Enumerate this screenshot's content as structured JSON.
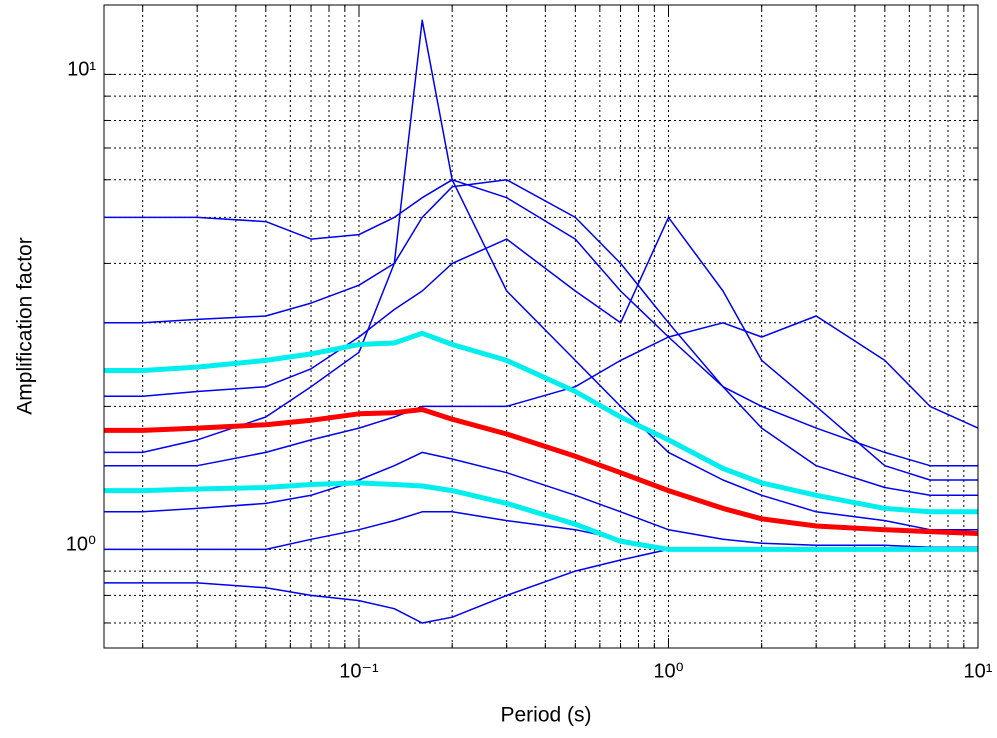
{
  "chart_data": {
    "type": "line",
    "xlabel": "Period (s)",
    "ylabel": "Amplification factor",
    "xlog": true,
    "ylog": true,
    "grid": true,
    "xlim": [
      0.015,
      10
    ],
    "ylim": [
      0.62,
      14
    ],
    "xticks": [
      {
        "value": 0.1,
        "label": "10⁻¹"
      },
      {
        "value": 1,
        "label": "10⁰"
      },
      {
        "value": 10,
        "label": "10¹"
      }
    ],
    "yticks": [
      {
        "value": 1,
        "label": "10⁰"
      },
      {
        "value": 10,
        "label": "10¹"
      }
    ],
    "x_minor_ticks": [
      0.02,
      0.03,
      0.04,
      0.05,
      0.06,
      0.07,
      0.08,
      0.09,
      0.2,
      0.3,
      0.4,
      0.5,
      0.6,
      0.7,
      0.8,
      0.9,
      2,
      3,
      4,
      5,
      6,
      7,
      8,
      9
    ],
    "y_minor_ticks": [
      0.7,
      0.8,
      0.9,
      2,
      3,
      4,
      5,
      6,
      7,
      8,
      9
    ],
    "x": [
      0.015,
      0.02,
      0.03,
      0.05,
      0.07,
      0.1,
      0.13,
      0.16,
      0.2,
      0.3,
      0.5,
      0.7,
      1,
      1.5,
      2,
      3,
      5,
      7,
      10
    ],
    "series": [
      {
        "color": "#0000ee",
        "line_width": 1.5,
        "values": [
          1.6,
          1.6,
          1.7,
          1.9,
          2.2,
          2.6,
          4,
          13,
          6,
          3.5,
          2.5,
          2,
          1.6,
          1.4,
          1.3,
          1.2,
          1.15,
          1.1,
          1.1
        ]
      },
      {
        "color": "#0000ee",
        "line_width": 1.5,
        "values": [
          5,
          5,
          5,
          4.9,
          4.5,
          4.6,
          5,
          5.5,
          6,
          5.5,
          4.5,
          3.5,
          2.8,
          2.2,
          2,
          1.8,
          1.6,
          1.5,
          1.5
        ]
      },
      {
        "color": "#0000ee",
        "line_width": 1.5,
        "values": [
          1.5,
          1.5,
          1.5,
          1.6,
          1.7,
          1.8,
          1.9,
          2,
          2,
          2,
          2.2,
          2.5,
          2.8,
          3,
          2.8,
          3.1,
          2.5,
          2,
          1.8
        ]
      },
      {
        "color": "#0000ee",
        "line_width": 1.5,
        "values": [
          0.85,
          0.85,
          0.85,
          0.83,
          0.8,
          0.78,
          0.75,
          0.7,
          0.72,
          0.8,
          0.9,
          0.95,
          1,
          1,
          1,
          1,
          1,
          1,
          1
        ]
      },
      {
        "color": "#0000ee",
        "line_width": 1.5,
        "values": [
          1.2,
          1.2,
          1.22,
          1.25,
          1.3,
          1.4,
          1.5,
          1.6,
          1.55,
          1.45,
          1.3,
          1.2,
          1.1,
          1.05,
          1.03,
          1.02,
          1.02,
          1.01,
          1.01
        ]
      },
      {
        "color": "#0000ee",
        "line_width": 1.5,
        "values": [
          2.1,
          2.1,
          2.15,
          2.2,
          2.4,
          2.8,
          3.2,
          3.5,
          4,
          4.5,
          3.5,
          3,
          5,
          3.5,
          2.5,
          2,
          1.5,
          1.4,
          1.4
        ]
      },
      {
        "color": "#0000ee",
        "line_width": 1.5,
        "values": [
          3,
          3,
          3.05,
          3.1,
          3.3,
          3.6,
          4,
          5,
          5.8,
          6,
          5,
          4,
          3,
          2.2,
          1.8,
          1.5,
          1.35,
          1.3,
          1.3
        ]
      },
      {
        "color": "#0000ee",
        "line_width": 1.5,
        "values": [
          1,
          1,
          1,
          1,
          1.05,
          1.1,
          1.15,
          1.2,
          1.2,
          1.15,
          1.1,
          1.05,
          1,
          1,
          1,
          1,
          1,
          1,
          1
        ]
      },
      {
        "color": "#00eeee",
        "line_width": 5,
        "values": [
          2.38,
          2.38,
          2.42,
          2.5,
          2.58,
          2.7,
          2.72,
          2.85,
          2.7,
          2.5,
          2.15,
          1.9,
          1.7,
          1.48,
          1.38,
          1.3,
          1.22,
          1.2,
          1.2
        ]
      },
      {
        "color": "#00eeee",
        "line_width": 5,
        "values": [
          1.33,
          1.33,
          1.34,
          1.35,
          1.37,
          1.38,
          1.37,
          1.36,
          1.33,
          1.25,
          1.13,
          1.04,
          1,
          1,
          1,
          1,
          1,
          1,
          1
        ]
      },
      {
        "color": "#ff0000",
        "line_width": 5,
        "values": [
          1.78,
          1.78,
          1.8,
          1.83,
          1.87,
          1.93,
          1.94,
          1.97,
          1.88,
          1.75,
          1.57,
          1.45,
          1.33,
          1.22,
          1.16,
          1.12,
          1.1,
          1.09,
          1.08
        ]
      }
    ]
  }
}
